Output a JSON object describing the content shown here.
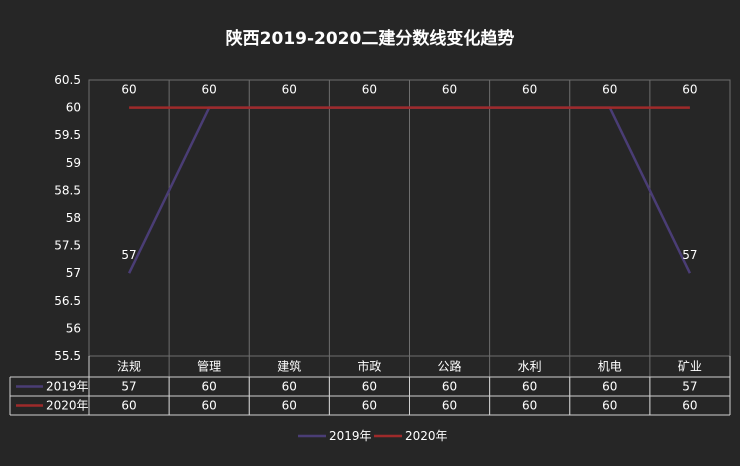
{
  "chart_data": {
    "type": "line",
    "title": "陕西2019-2020二建分数线变化趋势",
    "categories": [
      "法规",
      "管理",
      "建筑",
      "市政",
      "公路",
      "水利",
      "机电",
      "矿业"
    ],
    "series": [
      {
        "name": "2019年",
        "values": [
          57,
          60,
          60,
          60,
          60,
          60,
          60,
          57
        ],
        "color": "#4a3d75"
      },
      {
        "name": "2020年",
        "values": [
          60,
          60,
          60,
          60,
          60,
          60,
          60,
          60
        ],
        "color": "#9e2a2a"
      }
    ],
    "ylim": [
      55.5,
      60.5
    ],
    "yticks": [
      "55.5",
      "56",
      "56.5",
      "57",
      "57.5",
      "58",
      "58.5",
      "59",
      "59.5",
      "60",
      "60.5"
    ],
    "grid": "vertical",
    "legend": "bottom",
    "data_table": true
  }
}
